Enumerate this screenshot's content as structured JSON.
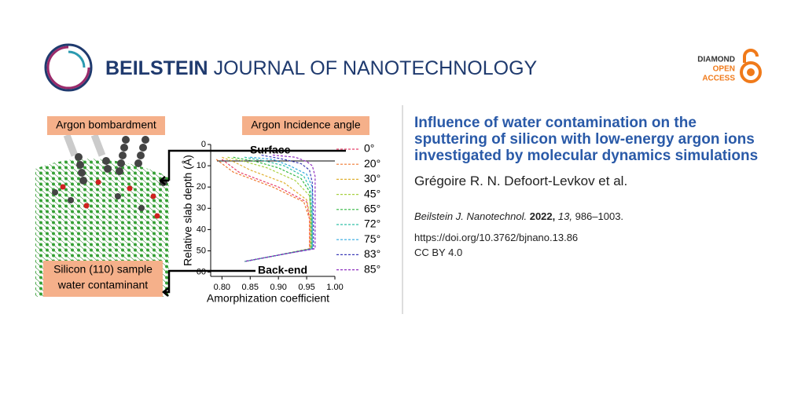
{
  "header": {
    "publisher": "BEILSTEIN",
    "journal": "JOURNAL OF NANOTECHNOLOGY",
    "badge": [
      "DIAMOND",
      "OPEN",
      "ACCESS"
    ]
  },
  "figure": {
    "labels": {
      "bombardment": "Argon bombardment",
      "incidence": "Argon Incidence angle",
      "sample": [
        "Silicon (110) sample",
        "water contaminant"
      ],
      "surface": "Surface",
      "back_end": "Back-end"
    }
  },
  "chart_data": {
    "type": "line",
    "x_label": "Amorphization coefficient",
    "y_label": "Relative slab depth (Å)",
    "xlim": [
      0.78,
      1.0
    ],
    "xticks": [
      {
        "value": 0.8,
        "label": "0.80"
      },
      {
        "value": 0.85,
        "label": "0.85"
      },
      {
        "value": 0.9,
        "label": "0.90"
      },
      {
        "value": 0.95,
        "label": "0.95"
      },
      {
        "value": 1.0,
        "label": "1.00"
      }
    ],
    "ylim": [
      0,
      62
    ],
    "yticks": [
      0,
      10,
      20,
      30,
      40,
      50,
      60
    ],
    "y_inverted": true,
    "dashed": true,
    "series": [
      {
        "name": "0°",
        "color": "#e8406a",
        "x": [
          0.8,
          0.81,
          0.83,
          0.9,
          0.95,
          0.955,
          0.955,
          0.9,
          0.84
        ],
        "values": [
          7,
          9,
          13,
          20,
          27,
          35,
          49,
          52,
          55
        ]
      },
      {
        "name": "20°",
        "color": "#f07a30",
        "x": [
          0.79,
          0.8,
          0.82,
          0.89,
          0.945,
          0.955,
          0.955,
          0.9,
          0.84
        ],
        "values": [
          7,
          9,
          13,
          20,
          27,
          35,
          49,
          52,
          55
        ]
      },
      {
        "name": "30°",
        "color": "#e0b030",
        "x": [
          0.8,
          0.82,
          0.85,
          0.91,
          0.95,
          0.957,
          0.957,
          0.9,
          0.84
        ],
        "values": [
          6,
          8,
          12,
          18,
          26,
          35,
          49,
          52,
          55
        ]
      },
      {
        "name": "45°",
        "color": "#a8d040",
        "x": [
          0.81,
          0.84,
          0.88,
          0.93,
          0.955,
          0.958,
          0.958,
          0.9,
          0.84
        ],
        "values": [
          6,
          8,
          11,
          17,
          24,
          35,
          49,
          52,
          55
        ]
      },
      {
        "name": "65°",
        "color": "#30b840",
        "x": [
          0.82,
          0.86,
          0.9,
          0.94,
          0.955,
          0.958,
          0.958,
          0.9,
          0.84
        ],
        "values": [
          6,
          8,
          11,
          16,
          22,
          35,
          49,
          52,
          55
        ]
      },
      {
        "name": "72°",
        "color": "#30c0a8",
        "x": [
          0.84,
          0.88,
          0.91,
          0.945,
          0.957,
          0.96,
          0.96,
          0.9,
          0.84
        ],
        "values": [
          6,
          8,
          10,
          15,
          21,
          35,
          49,
          52,
          55
        ]
      },
      {
        "name": "75°",
        "color": "#30a8e0",
        "x": [
          0.85,
          0.89,
          0.92,
          0.95,
          0.96,
          0.96,
          0.96,
          0.9,
          0.84
        ],
        "values": [
          6,
          7,
          10,
          14,
          20,
          35,
          49,
          52,
          55
        ]
      },
      {
        "name": "83°",
        "color": "#3a3ab8",
        "x": [
          0.87,
          0.91,
          0.94,
          0.955,
          0.96,
          0.962,
          0.962,
          0.9,
          0.84
        ],
        "values": [
          5,
          7,
          9,
          12,
          18,
          35,
          49,
          52,
          55
        ]
      },
      {
        "name": "85°",
        "color": "#9030c0",
        "x": [
          0.89,
          0.93,
          0.95,
          0.96,
          0.965,
          0.965,
          0.965,
          0.9,
          0.84
        ],
        "values": [
          5,
          6,
          8,
          10,
          15,
          35,
          49,
          52,
          55
        ]
      }
    ]
  },
  "article": {
    "title": "Influence of water contamination on the sputtering of silicon with low-energy argon ions investigated by molecular dynamics simulations",
    "authors": "Grégoire R. N. Defoort-Levkov et al.",
    "citation": {
      "journal": "Beilstein J. Nanotechnol.",
      "year": "2022,",
      "volume": "13,",
      "pages": "986–1003."
    },
    "doi": "https://doi.org/10.3762/bjnano.13.86",
    "license": "CC BY 4.0"
  }
}
